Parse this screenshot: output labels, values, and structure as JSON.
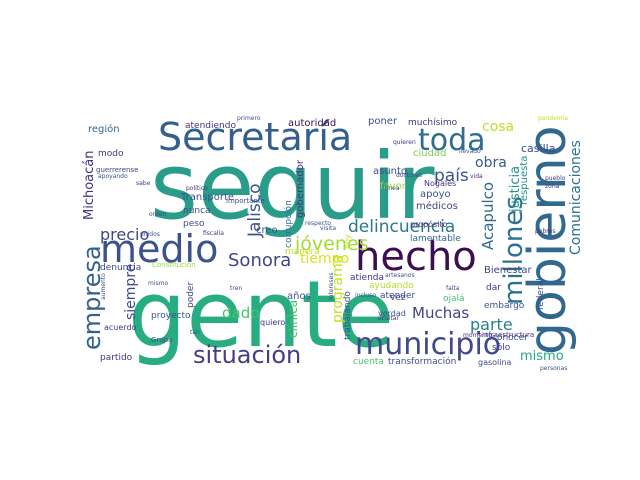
{
  "wordcloud": {
    "words": [
      {
        "text": "seguir",
        "color": "#2a9d8a"
      },
      {
        "text": "gente",
        "color": "#27ad81"
      },
      {
        "text": "hecho",
        "color": "#3b0f52"
      },
      {
        "text": "gobierno",
        "color": "#31688e"
      },
      {
        "text": "Secretaría",
        "color": "#355f8d"
      },
      {
        "text": "toda",
        "color": "#2f6c8e"
      },
      {
        "text": "medio",
        "color": "#3b528b"
      },
      {
        "text": "municipio",
        "color": "#3e4a89"
      },
      {
        "text": "situación",
        "color": "#433e85"
      },
      {
        "text": "millones",
        "color": "#2c718e"
      },
      {
        "text": "empresa",
        "color": "#33628d"
      },
      {
        "text": "delincuencia",
        "color": "#2a788e"
      },
      {
        "text": "jóvenes",
        "color": "#a5db36"
      },
      {
        "text": "Sonora",
        "color": "#414487"
      },
      {
        "text": "precio",
        "color": "#404588"
      },
      {
        "text": "Jalisco",
        "color": "#3a548c"
      },
      {
        "text": "país",
        "color": "#3b528b"
      },
      {
        "text": "Acapulco",
        "color": "#31688e"
      },
      {
        "text": "Comunicaciones",
        "color": "#2d708e"
      },
      {
        "text": "justicia",
        "color": "#21918c"
      },
      {
        "text": "parte",
        "color": "#27808e"
      },
      {
        "text": "mismo",
        "color": "#22a884"
      },
      {
        "text": "Muchas",
        "color": "#414487"
      },
      {
        "text": "obra",
        "color": "#38598c"
      },
      {
        "text": "cosa",
        "color": "#bddf26"
      },
      {
        "text": "programa",
        "color": "#c5e021"
      },
      {
        "text": "dado",
        "color": "#48c16e"
      },
      {
        "text": "siempre",
        "color": "#3e4c8a"
      },
      {
        "text": "tiempo",
        "color": "#d8e219"
      },
      {
        "text": "Michoacán",
        "color": "#46327e"
      },
      {
        "text": "clínica",
        "color": "#46c06f"
      },
      {
        "text": "respuesta",
        "color": "#21918c"
      },
      {
        "text": "casilla",
        "color": "#3e4a89"
      },
      {
        "text": "Transporte",
        "color": "#3b528b"
      },
      {
        "text": "región",
        "color": "#31688e"
      },
      {
        "text": "modo",
        "color": "#453781"
      },
      {
        "text": "guerrerense",
        "color": "#3f4788"
      },
      {
        "text": "nunca",
        "color": "#3e4c8a"
      },
      {
        "text": "peso",
        "color": "#3b528b"
      },
      {
        "text": "atendiendo",
        "color": "#46337e"
      },
      {
        "text": "autoridad",
        "color": "#3b0f52"
      },
      {
        "text": "poner",
        "color": "#3b528b"
      },
      {
        "text": "muchísimo",
        "color": "#46337e"
      },
      {
        "text": "ciudad",
        "color": "#7ad151"
      },
      {
        "text": "asunto",
        "color": "#3b528b"
      },
      {
        "text": "gobernador",
        "color": "#46337e"
      },
      {
        "text": "favor",
        "color": "#9fda3a"
      },
      {
        "text": "Nogales",
        "color": "#46337e"
      },
      {
        "text": "apoyo",
        "color": "#3b528b"
      },
      {
        "text": "médicos",
        "color": "#414487"
      },
      {
        "text": "corrupción",
        "color": "#2c728e"
      },
      {
        "text": "creo",
        "color": "#38598c"
      },
      {
        "text": "manera",
        "color": "#c2df23"
      },
      {
        "text": "lamentable",
        "color": "#31688e"
      },
      {
        "text": "Bienestar",
        "color": "#404588"
      },
      {
        "text": "denuncia",
        "color": "#3e4a89"
      },
      {
        "text": "años",
        "color": "#38598c"
      },
      {
        "text": "ayudando",
        "color": "#b5de2b"
      },
      {
        "text": "atender",
        "color": "#404588"
      },
      {
        "text": "dar",
        "color": "#46337e"
      },
      {
        "text": "embargo",
        "color": "#3b528b"
      },
      {
        "text": "ojalá",
        "color": "#4ac16d"
      },
      {
        "text": "vez",
        "color": "#3e4a89"
      },
      {
        "text": "federal",
        "color": "#3b528b"
      },
      {
        "text": "poder",
        "color": "#414487"
      },
      {
        "text": "proyecto",
        "color": "#3b528b"
      },
      {
        "text": "partido",
        "color": "#46337e"
      },
      {
        "text": "trabajando",
        "color": "#3b528b"
      },
      {
        "text": "quiero",
        "color": "#46337e"
      },
      {
        "text": "verdad",
        "color": "#3b528b"
      },
      {
        "text": "conocer",
        "color": "#3b528b"
      },
      {
        "text": "sólo",
        "color": "#404588"
      },
      {
        "text": "cuenta",
        "color": "#4ac16d"
      },
      {
        "text": "transformación",
        "color": "#3b528b"
      },
      {
        "text": "gasolina",
        "color": "#3e4a89"
      },
      {
        "text": "infraestructura",
        "color": "#46337e"
      },
      {
        "text": "acuerdo",
        "color": "#46337e"
      },
      {
        "text": "Grupo",
        "color": "#3e4a89"
      },
      {
        "text": "tren",
        "color": "#404588"
      },
      {
        "text": "atienda",
        "color": "#46337e"
      },
      {
        "text": "propósito",
        "color": "#46337e"
      },
      {
        "text": "importante",
        "color": "#3b528b"
      },
      {
        "text": "político",
        "color": "#46337e"
      },
      {
        "text": "sabe",
        "color": "#414487"
      },
      {
        "text": "primero",
        "color": "#3b528b"
      },
      {
        "text": "orden",
        "color": "#3e4a89"
      },
      {
        "text": "respecto",
        "color": "#3b528b"
      },
      {
        "text": "visita",
        "color": "#3b528b"
      },
      {
        "text": "fiscalía",
        "color": "#46337e"
      },
      {
        "text": "momento",
        "color": "#46337e"
      },
      {
        "text": "falta",
        "color": "#404588"
      },
      {
        "text": "personas",
        "color": "#3b528b"
      },
      {
        "text": "pueblo",
        "color": "#46337e"
      },
      {
        "text": "zona",
        "color": "#46337e"
      },
      {
        "text": "pobres",
        "color": "#46337e"
      },
      {
        "text": "llevado",
        "color": "#3b528b"
      },
      {
        "text": "quieren",
        "color": "#46337e"
      },
      {
        "text": "doctores",
        "color": "#404588"
      },
      {
        "text": "pandemia",
        "color": "#c8e020"
      },
      {
        "text": "vida",
        "color": "#46337e"
      },
      {
        "text": "tan",
        "color": "#3b528b"
      },
      {
        "text": "mismo",
        "color": "#3b528b"
      },
      {
        "text": "Constitución",
        "color": "#9fda3a"
      },
      {
        "text": "línea",
        "color": "#3b528b"
      },
      {
        "text": "apoyando",
        "color": "#3b528b"
      },
      {
        "text": "aumento",
        "color": "#3b528b"
      },
      {
        "text": "unidos",
        "color": "#3b528b"
      },
      {
        "text": "artesanos",
        "color": "#3b528b"
      },
      {
        "text": "intereses",
        "color": "#3b528b"
      },
      {
        "text": "ocultar",
        "color": "#46337e"
      },
      {
        "text": "incluso",
        "color": "#3b528b"
      },
      {
        "text": "hoy",
        "color": "#c8e020"
      }
    ]
  }
}
